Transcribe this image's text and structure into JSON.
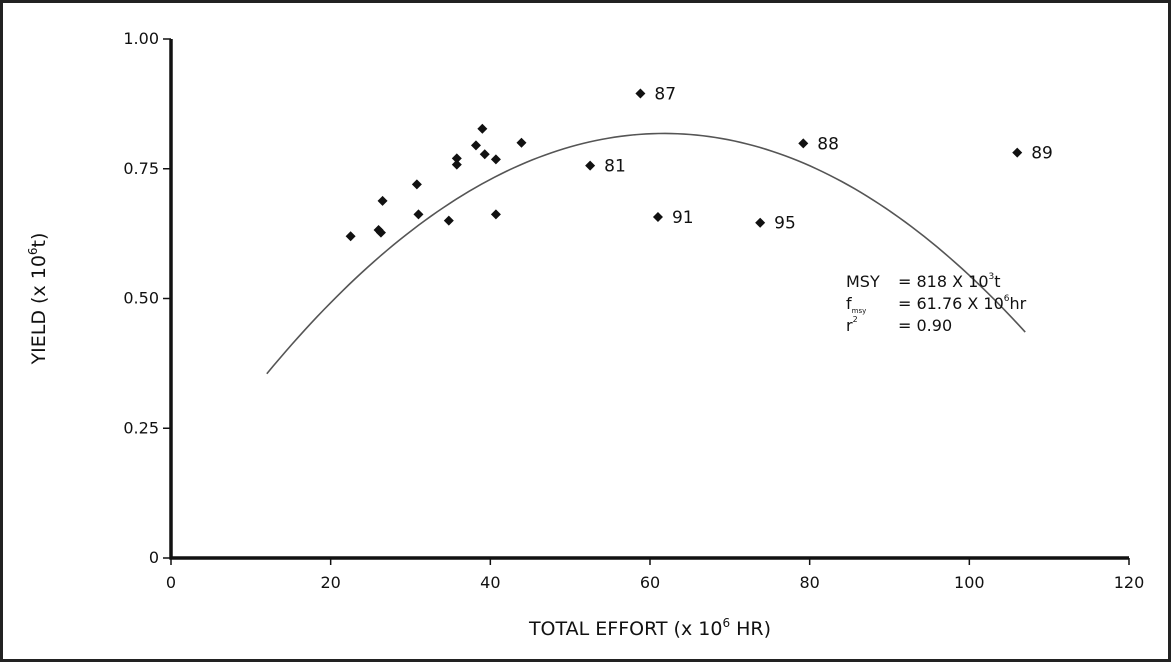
{
  "chart_data": {
    "type": "scatter",
    "xlabel": {
      "pre": "TOTAL EFFORT (x 10",
      "sup": "6",
      "post": " HR)"
    },
    "ylabel": {
      "pre": "YIELD (x 10",
      "sup": "6",
      "post": "t)"
    },
    "xlim": [
      0,
      120
    ],
    "ylim": [
      0,
      1.0
    ],
    "x_ticks": [
      0,
      20,
      40,
      60,
      80,
      100,
      120
    ],
    "x_tick_labels": [
      "0",
      "20",
      "40",
      "60",
      "80",
      "100",
      "120"
    ],
    "y_ticks": [
      0,
      0.25,
      0.5,
      0.75,
      1.0
    ],
    "y_tick_labels": [
      "0",
      "0.25",
      "0.50",
      "0.75",
      "1.00"
    ],
    "grid": false,
    "points": [
      {
        "x": 22.5,
        "y": 0.62,
        "label": ""
      },
      {
        "x": 26.0,
        "y": 0.632,
        "label": ""
      },
      {
        "x": 26.3,
        "y": 0.627,
        "label": ""
      },
      {
        "x": 26.5,
        "y": 0.688,
        "label": ""
      },
      {
        "x": 30.8,
        "y": 0.72,
        "label": ""
      },
      {
        "x": 31.0,
        "y": 0.662,
        "label": ""
      },
      {
        "x": 34.8,
        "y": 0.65,
        "label": ""
      },
      {
        "x": 35.8,
        "y": 0.77,
        "label": ""
      },
      {
        "x": 35.8,
        "y": 0.758,
        "label": ""
      },
      {
        "x": 38.2,
        "y": 0.795,
        "label": ""
      },
      {
        "x": 39.0,
        "y": 0.827,
        "label": ""
      },
      {
        "x": 39.3,
        "y": 0.778,
        "label": ""
      },
      {
        "x": 40.7,
        "y": 0.768,
        "label": ""
      },
      {
        "x": 40.7,
        "y": 0.662,
        "label": ""
      },
      {
        "x": 43.9,
        "y": 0.8,
        "label": ""
      },
      {
        "x": 52.5,
        "y": 0.756,
        "label": "81"
      },
      {
        "x": 58.8,
        "y": 0.895,
        "label": "87"
      },
      {
        "x": 61.0,
        "y": 0.657,
        "label": "91"
      },
      {
        "x": 73.8,
        "y": 0.646,
        "label": "95"
      },
      {
        "x": 79.2,
        "y": 0.799,
        "label": "88"
      },
      {
        "x": 106.0,
        "y": 0.781,
        "label": "89"
      }
    ],
    "fit_curve": {
      "type": "quadratic",
      "vertex_x": 61.76,
      "vertex_y": 0.818,
      "x_start": 12,
      "x_end": 107,
      "y_at_x_start": 0.355
    },
    "annotation": {
      "lines": [
        {
          "lhs": "MSY",
          "lhs_sub": "",
          "lhs_sup": "",
          "rhs_pre": "= 818 X 10",
          "rhs_sup": "3",
          "rhs_post": "t"
        },
        {
          "lhs": "f",
          "lhs_sub": "msy",
          "lhs_sup": "",
          "rhs_pre": "= 61.76 X 10",
          "rhs_sup": "6",
          "rhs_post": "hr"
        },
        {
          "lhs": "r",
          "lhs_sub": "",
          "lhs_sup": "2",
          "rhs_pre": "= 0.90",
          "rhs_sup": "",
          "rhs_post": ""
        }
      ]
    },
    "colors": {
      "axis": "#111111",
      "marker": "#111111",
      "curve": "#555555"
    }
  }
}
